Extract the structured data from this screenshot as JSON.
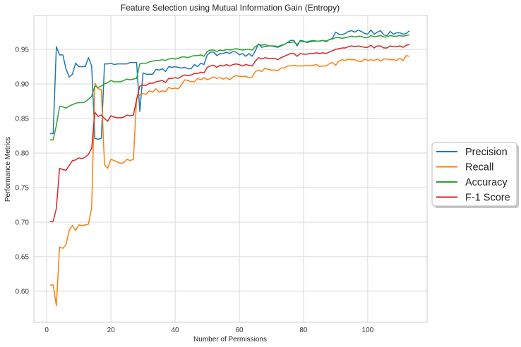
{
  "chart_data": {
    "type": "line",
    "title": "Feature Selection using Mutual Information Gain (Entropy)",
    "xlabel": "Number of Permissions",
    "ylabel": "Performance Metrics",
    "xlim": [
      -4,
      118.5
    ],
    "ylim": [
      0.555,
      0.999
    ],
    "xticks": [
      0,
      20,
      40,
      60,
      80,
      100
    ],
    "yticks": [
      0.6,
      0.65,
      0.7,
      0.75,
      0.8,
      0.85,
      0.9,
      0.95
    ],
    "grid": true,
    "legend_position": "right-outside",
    "x": [
      1,
      2,
      3,
      4,
      5,
      6,
      7,
      8,
      9,
      10,
      11,
      12,
      13,
      14,
      15,
      16,
      17,
      18,
      19,
      20,
      21,
      22,
      23,
      24,
      25,
      26,
      27,
      28,
      29,
      30,
      31,
      32,
      33,
      34,
      35,
      36,
      37,
      38,
      39,
      40,
      41,
      42,
      43,
      44,
      45,
      46,
      47,
      48,
      49,
      50,
      51,
      52,
      53,
      54,
      55,
      56,
      57,
      58,
      59,
      60,
      61,
      62,
      63,
      64,
      65,
      66,
      67,
      68,
      69,
      70,
      71,
      72,
      73,
      74,
      75,
      76,
      77,
      78,
      79,
      80,
      81,
      82,
      83,
      84,
      85,
      86,
      87,
      88,
      89,
      90,
      91,
      92,
      93,
      94,
      95,
      96,
      97,
      98,
      99,
      100,
      101,
      102,
      103,
      104,
      105,
      106,
      107,
      108,
      109,
      110,
      111,
      112,
      113
    ],
    "series": [
      {
        "name": "Precision",
        "color": "#1f77b4",
        "values": [
          0.828,
          0.828,
          0.954,
          0.942,
          0.942,
          0.922,
          0.91,
          0.914,
          0.93,
          0.925,
          0.925,
          0.925,
          0.938,
          0.926,
          0.821,
          0.82,
          0.821,
          0.929,
          0.929,
          0.93,
          0.928,
          0.929,
          0.929,
          0.929,
          0.929,
          0.931,
          0.931,
          0.931,
          0.86,
          0.916,
          0.914,
          0.914,
          0.914,
          0.921,
          0.92,
          0.922,
          0.918,
          0.925,
          0.924,
          0.925,
          0.924,
          0.923,
          0.924,
          0.922,
          0.922,
          0.928,
          0.925,
          0.93,
          0.928,
          0.942,
          0.946,
          0.946,
          0.941,
          0.944,
          0.944,
          0.946,
          0.944,
          0.947,
          0.946,
          0.942,
          0.944,
          0.94,
          0.944,
          0.94,
          0.948,
          0.958,
          0.953,
          0.954,
          0.955,
          0.955,
          0.954,
          0.953,
          0.955,
          0.957,
          0.96,
          0.963,
          0.963,
          0.955,
          0.963,
          0.962,
          0.96,
          0.961,
          0.962,
          0.962,
          0.962,
          0.963,
          0.961,
          0.964,
          0.966,
          0.975,
          0.972,
          0.971,
          0.973,
          0.976,
          0.977,
          0.975,
          0.978,
          0.976,
          0.973,
          0.972,
          0.978,
          0.972,
          0.975,
          0.977,
          0.971,
          0.97,
          0.976,
          0.972,
          0.974,
          0.974,
          0.972,
          0.973,
          0.977
        ]
      },
      {
        "name": "Recall",
        "color": "#ff7f0e",
        "values": [
          0.609,
          0.609,
          0.579,
          0.664,
          0.662,
          0.667,
          0.688,
          0.695,
          0.688,
          0.696,
          0.695,
          0.696,
          0.697,
          0.72,
          0.901,
          0.893,
          0.892,
          0.783,
          0.778,
          0.791,
          0.789,
          0.787,
          0.785,
          0.786,
          0.791,
          0.789,
          0.791,
          0.879,
          0.884,
          0.886,
          0.885,
          0.89,
          0.888,
          0.893,
          0.888,
          0.89,
          0.889,
          0.895,
          0.893,
          0.894,
          0.893,
          0.899,
          0.906,
          0.905,
          0.903,
          0.903,
          0.908,
          0.906,
          0.909,
          0.906,
          0.908,
          0.91,
          0.908,
          0.909,
          0.907,
          0.909,
          0.906,
          0.91,
          0.912,
          0.911,
          0.911,
          0.911,
          0.909,
          0.91,
          0.918,
          0.92,
          0.918,
          0.923,
          0.921,
          0.92,
          0.92,
          0.919,
          0.923,
          0.923,
          0.926,
          0.926,
          0.927,
          0.926,
          0.926,
          0.926,
          0.927,
          0.926,
          0.927,
          0.928,
          0.925,
          0.926,
          0.926,
          0.929,
          0.931,
          0.927,
          0.933,
          0.935,
          0.934,
          0.936,
          0.935,
          0.935,
          0.933,
          0.932,
          0.936,
          0.934,
          0.935,
          0.934,
          0.936,
          0.933,
          0.936,
          0.936,
          0.935,
          0.935,
          0.934,
          0.937,
          0.934,
          0.941,
          0.94
        ]
      },
      {
        "name": "Accuracy",
        "color": "#2ca02c",
        "values": [
          0.819,
          0.819,
          0.84,
          0.867,
          0.867,
          0.865,
          0.868,
          0.87,
          0.872,
          0.873,
          0.873,
          0.874,
          0.878,
          0.882,
          0.897,
          0.895,
          0.897,
          0.9,
          0.902,
          0.905,
          0.903,
          0.903,
          0.903,
          0.905,
          0.907,
          0.906,
          0.907,
          0.908,
          0.929,
          0.93,
          0.93,
          0.932,
          0.933,
          0.934,
          0.934,
          0.935,
          0.934,
          0.936,
          0.937,
          0.936,
          0.937,
          0.939,
          0.939,
          0.938,
          0.94,
          0.941,
          0.941,
          0.942,
          0.94,
          0.947,
          0.949,
          0.949,
          0.947,
          0.949,
          0.948,
          0.95,
          0.949,
          0.95,
          0.951,
          0.95,
          0.949,
          0.95,
          0.95,
          0.949,
          0.954,
          0.957,
          0.956,
          0.957,
          0.955,
          0.955,
          0.955,
          0.954,
          0.956,
          0.957,
          0.96,
          0.96,
          0.961,
          0.957,
          0.962,
          0.961,
          0.961,
          0.962,
          0.963,
          0.962,
          0.962,
          0.963,
          0.962,
          0.964,
          0.965,
          0.967,
          0.967,
          0.966,
          0.967,
          0.968,
          0.969,
          0.968,
          0.969,
          0.969,
          0.967,
          0.967,
          0.97,
          0.968,
          0.969,
          0.97,
          0.968,
          0.968,
          0.97,
          0.969,
          0.969,
          0.97,
          0.969,
          0.97,
          0.971
        ]
      },
      {
        "name": "F-1 Score",
        "color": "#d62728",
        "values": [
          0.701,
          0.701,
          0.72,
          0.778,
          0.776,
          0.775,
          0.782,
          0.789,
          0.79,
          0.793,
          0.792,
          0.794,
          0.798,
          0.807,
          0.859,
          0.853,
          0.855,
          0.85,
          0.846,
          0.854,
          0.852,
          0.851,
          0.851,
          0.852,
          0.855,
          0.854,
          0.855,
          0.877,
          0.897,
          0.898,
          0.898,
          0.901,
          0.901,
          0.903,
          0.904,
          0.905,
          0.902,
          0.908,
          0.908,
          0.909,
          0.908,
          0.911,
          0.913,
          0.912,
          0.913,
          0.915,
          0.915,
          0.917,
          0.916,
          0.924,
          0.926,
          0.927,
          0.924,
          0.927,
          0.926,
          0.928,
          0.926,
          0.928,
          0.929,
          0.928,
          0.926,
          0.928,
          0.927,
          0.926,
          0.933,
          0.938,
          0.936,
          0.938,
          0.937,
          0.937,
          0.937,
          0.935,
          0.938,
          0.94,
          0.942,
          0.944,
          0.944,
          0.94,
          0.944,
          0.943,
          0.943,
          0.944,
          0.944,
          0.945,
          0.944,
          0.945,
          0.944,
          0.946,
          0.948,
          0.95,
          0.951,
          0.952,
          0.952,
          0.954,
          0.955,
          0.954,
          0.955,
          0.954,
          0.953,
          0.953,
          0.956,
          0.952,
          0.955,
          0.955,
          0.952,
          0.952,
          0.955,
          0.954,
          0.954,
          0.955,
          0.953,
          0.956,
          0.957
        ]
      }
    ]
  }
}
